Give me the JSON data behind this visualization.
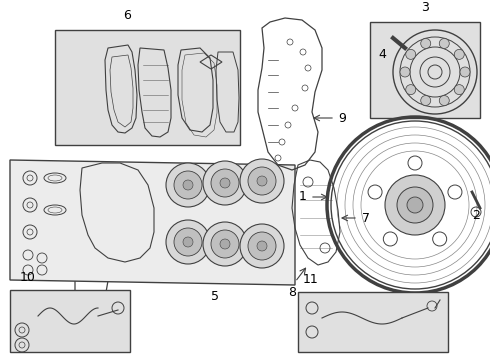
{
  "bg_color": "#ffffff",
  "box_fill": "#e0e0e0",
  "line_color": "#404040",
  "figsize": [
    4.9,
    3.6
  ],
  "dpi": 100,
  "lw": 0.7
}
